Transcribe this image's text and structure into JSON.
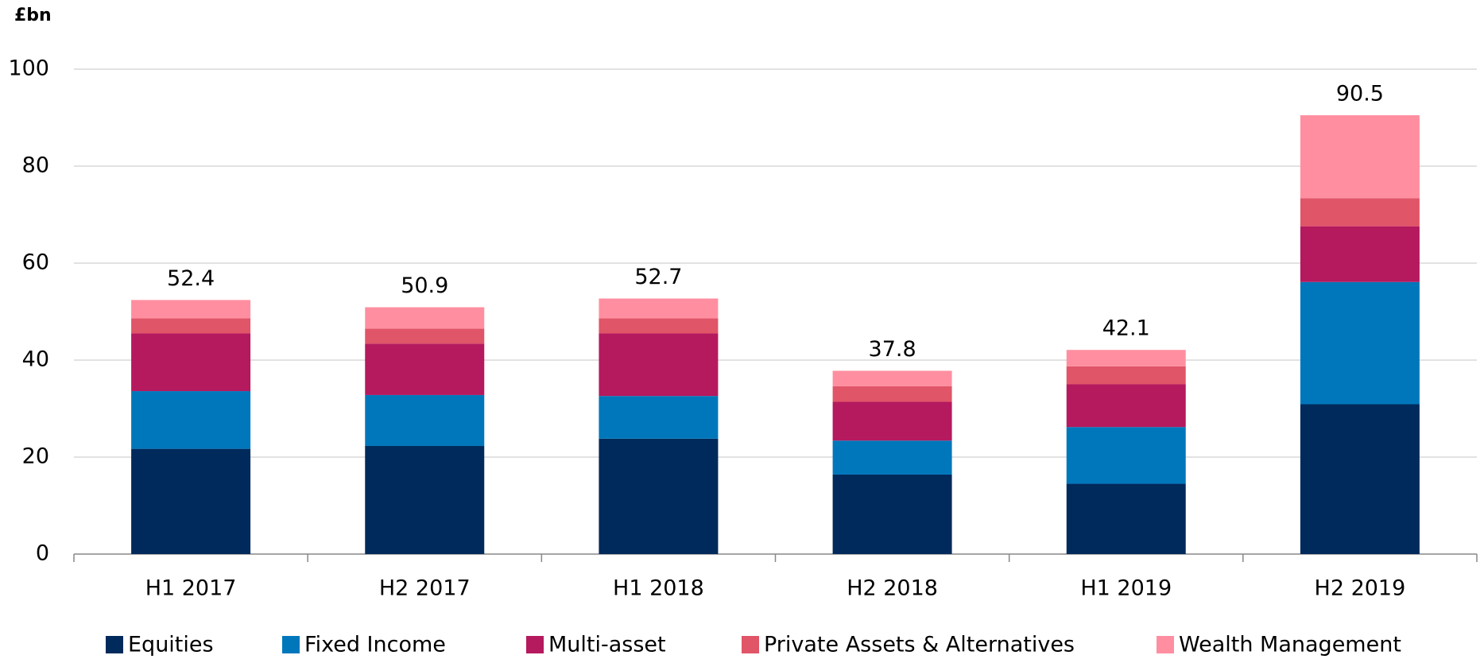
{
  "chart_data": {
    "type": "stacked_bar",
    "y_unit": "£bn",
    "categories": [
      "H1 2017",
      "H2 2017",
      "H1 2018",
      "H2 2018",
      "H1 2019",
      "H2 2019"
    ],
    "series": [
      {
        "name": "Equities",
        "color": "#002a5c",
        "values": [
          21.7,
          22.3,
          23.8,
          16.4,
          14.5,
          30.9
        ]
      },
      {
        "name": "Fixed Income",
        "color": "#0077bb",
        "values": [
          11.9,
          10.5,
          8.8,
          7.0,
          11.7,
          25.2
        ]
      },
      {
        "name": "Multi-asset",
        "color": "#b5195e",
        "values": [
          11.9,
          10.6,
          12.9,
          8.0,
          8.8,
          11.5
        ]
      },
      {
        "name": "Private Assets & Alternatives",
        "color": "#e05568",
        "values": [
          3.1,
          3.1,
          3.1,
          3.2,
          3.7,
          5.8
        ]
      },
      {
        "name": "Wealth Management",
        "color": "#ff8fa0",
        "values": [
          3.8,
          4.4,
          4.1,
          3.2,
          3.4,
          17.1
        ]
      }
    ],
    "totals": [
      52.4,
      50.9,
      52.7,
      37.8,
      42.1,
      90.5
    ],
    "ylim": [
      0,
      100
    ],
    "yticks": [
      0,
      20,
      40,
      60,
      80,
      100
    ],
    "grid": true
  }
}
